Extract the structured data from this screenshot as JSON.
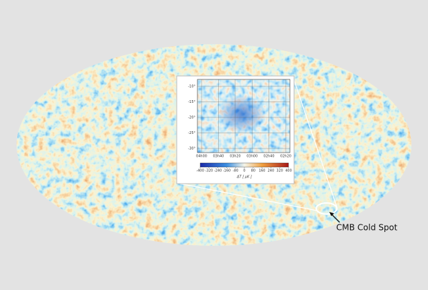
{
  "annotation": "CMB Cold Spot",
  "inset": {
    "y_labels": [
      "-10°",
      "-15°",
      "-20°",
      "-25°",
      "-30°"
    ],
    "x_labels": [
      "04h00",
      "03h40",
      "03h20",
      "03h00",
      "02h40",
      "02h20"
    ],
    "colorbar": {
      "ticks": [
        -400,
        -320,
        -240,
        -160,
        -80,
        0,
        80,
        160,
        240,
        320,
        400
      ],
      "label": "ΔT [ μK ]"
    }
  }
}
